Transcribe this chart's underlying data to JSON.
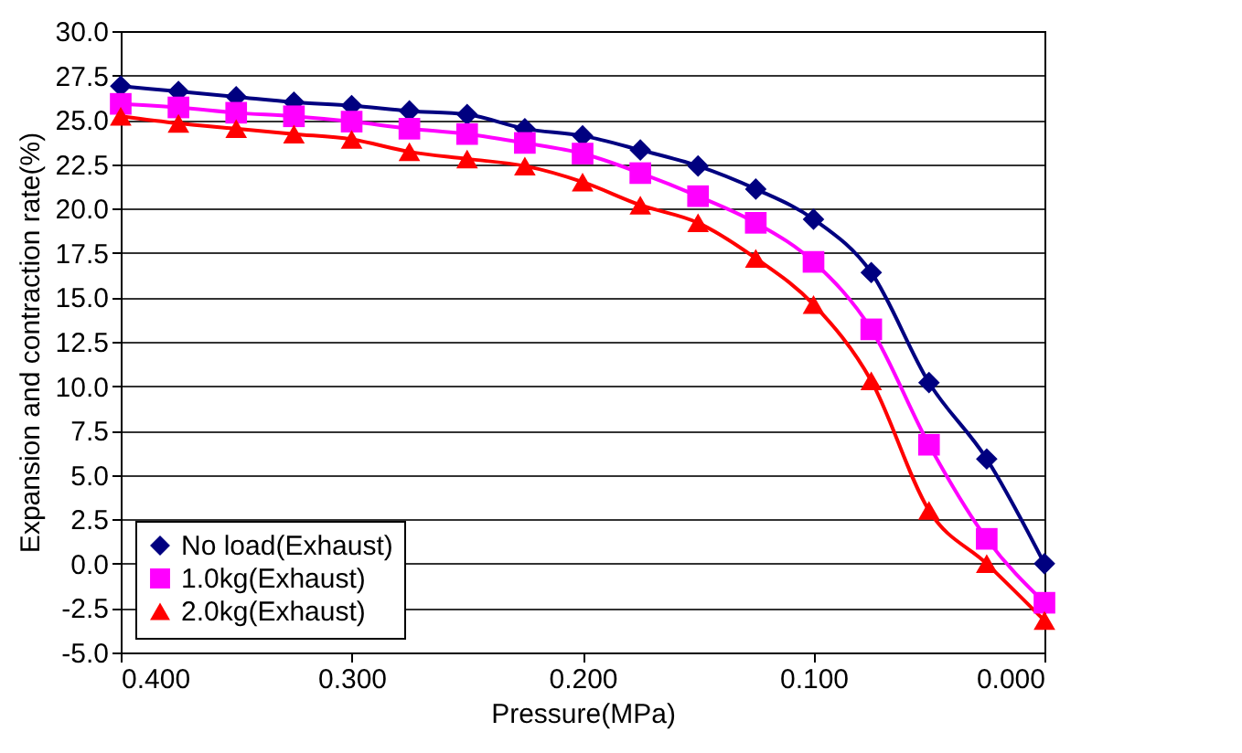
{
  "chart_data": {
    "type": "line",
    "xlabel": "Pressure(MPa)",
    "ylabel": "Expansion and contraction rate(%)",
    "x": [
      0.4,
      0.375,
      0.35,
      0.325,
      0.3,
      0.275,
      0.25,
      0.225,
      0.2,
      0.175,
      0.15,
      0.125,
      0.1,
      0.075,
      0.05,
      0.025,
      0
    ],
    "series": [
      {
        "name": "No load(Exhaust)",
        "color": "#000080",
        "marker": "diamond",
        "values": [
          26.9,
          26.6,
          26.3,
          26.0,
          25.8,
          25.5,
          25.3,
          24.5,
          24.1,
          23.3,
          22.4,
          21.1,
          19.4,
          16.4,
          10.2,
          5.9,
          0.0
        ]
      },
      {
        "name": "1.0kg(Exhaust)",
        "color": "#ff00ff",
        "marker": "square",
        "values": [
          25.9,
          25.7,
          25.4,
          25.2,
          24.9,
          24.5,
          24.2,
          23.7,
          23.1,
          22.0,
          20.7,
          19.2,
          17.0,
          13.2,
          6.7,
          1.4,
          -2.2
        ]
      },
      {
        "name": "2.0kg(Exhaust)",
        "color": "#ff0000",
        "marker": "triangle",
        "values": [
          25.2,
          24.8,
          24.5,
          24.2,
          23.9,
          23.2,
          22.8,
          22.4,
          21.5,
          20.2,
          19.2,
          17.2,
          14.6,
          10.3,
          3.0,
          0.0,
          -3.2
        ]
      }
    ],
    "xlim": [
      0.4,
      0
    ],
    "xticks": [
      {
        "value": 0.4,
        "label": "0.400"
      },
      {
        "value": 0.3,
        "label": "0.300"
      },
      {
        "value": 0.2,
        "label": "0.200"
      },
      {
        "value": 0.1,
        "label": "0.100"
      },
      {
        "value": 0,
        "label": "0.000"
      }
    ],
    "ylim": [
      -5,
      30
    ],
    "yticks": [
      {
        "value": -5,
        "label": "-5.0"
      },
      {
        "value": -2.5,
        "label": "-2.5"
      },
      {
        "value": 0,
        "label": "0.0"
      },
      {
        "value": 2.5,
        "label": "2.5"
      },
      {
        "value": 5,
        "label": "5.0"
      },
      {
        "value": 7.5,
        "label": "7.5"
      },
      {
        "value": 10,
        "label": "10.0"
      },
      {
        "value": 12.5,
        "label": "12.5"
      },
      {
        "value": 15,
        "label": "15.0"
      },
      {
        "value": 17.5,
        "label": "17.5"
      },
      {
        "value": 20,
        "label": "20.0"
      },
      {
        "value": 22.5,
        "label": "22.5"
      },
      {
        "value": 25,
        "label": "25.0"
      },
      {
        "value": 27.5,
        "label": "27.5"
      },
      {
        "value": 30,
        "label": "30.0"
      }
    ],
    "grid": "y",
    "legend": "bottom left",
    "line_style": "solid"
  }
}
